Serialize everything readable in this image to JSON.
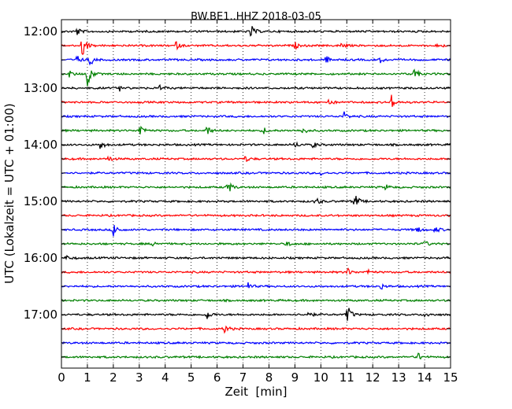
{
  "chart_data": {
    "type": "line",
    "title": "BW.BE1..HHZ 2018-03-05",
    "xlabel": "Zeit  [min]",
    "ylabel": "UTC (Lokalzeit = UTC + 01:00)",
    "xlim": [
      0,
      15
    ],
    "x_ticks": [
      "0",
      "1",
      "2",
      "3",
      "4",
      "5",
      "6",
      "7",
      "8",
      "9",
      "10",
      "11",
      "12",
      "13",
      "14",
      "15"
    ],
    "hour_labels": [
      "12:00",
      "13:00",
      "14:00",
      "15:00",
      "16:00",
      "17:00"
    ],
    "grid": "vertical dotted lines at each minute",
    "trace_colors": [
      "#000000",
      "#ff0000",
      "#0000ff",
      "#008000"
    ],
    "traces": [
      {
        "start": "12:00",
        "color": "#000000",
        "events": [
          {
            "t": 0.6,
            "amp": 0.4
          },
          {
            "t": 7.3,
            "amp": 0.7
          }
        ]
      },
      {
        "start": "12:15",
        "color": "#ff0000",
        "events": [
          {
            "t": 0.8,
            "amp": 1.3
          },
          {
            "t": 4.4,
            "amp": 0.4
          },
          {
            "t": 9.0,
            "amp": 0.3
          },
          {
            "t": 10.8,
            "amp": 0.3
          },
          {
            "t": 14.5,
            "amp": 0.25
          }
        ]
      },
      {
        "start": "12:30",
        "color": "#0000ff",
        "events": [
          {
            "t": 0.6,
            "amp": 0.4
          },
          {
            "t": 1.1,
            "amp": 0.6
          },
          {
            "t": 10.2,
            "amp": 0.35
          },
          {
            "t": 12.3,
            "amp": 0.25
          }
        ]
      },
      {
        "start": "12:45",
        "color": "#008000",
        "events": [
          {
            "t": 0.3,
            "amp": 0.3
          },
          {
            "t": 1.0,
            "amp": 1.3
          },
          {
            "t": 13.6,
            "amp": 0.6
          }
        ]
      },
      {
        "start": "13:00",
        "color": "#000000",
        "events": [
          {
            "t": 2.2,
            "amp": 0.35
          },
          {
            "t": 3.8,
            "amp": 0.25
          }
        ]
      },
      {
        "start": "13:15",
        "color": "#ff0000",
        "events": [
          {
            "t": 10.3,
            "amp": 0.35
          },
          {
            "t": 12.7,
            "amp": 0.8
          }
        ]
      },
      {
        "start": "13:30",
        "color": "#0000ff",
        "events": [
          {
            "t": 10.9,
            "amp": 0.4
          }
        ]
      },
      {
        "start": "13:45",
        "color": "#008000",
        "events": [
          {
            "t": 3.0,
            "amp": 0.8
          },
          {
            "t": 5.6,
            "amp": 0.5
          },
          {
            "t": 7.8,
            "amp": 0.3
          },
          {
            "t": 9.3,
            "amp": 0.35
          }
        ]
      },
      {
        "start": "14:00",
        "color": "#000000",
        "events": [
          {
            "t": 1.5,
            "amp": 0.5
          },
          {
            "t": 9.0,
            "amp": 0.3
          },
          {
            "t": 9.7,
            "amp": 0.3
          }
        ]
      },
      {
        "start": "14:15",
        "color": "#ff0000",
        "events": [
          {
            "t": 1.8,
            "amp": 0.3
          },
          {
            "t": 7.1,
            "amp": 0.3
          }
        ]
      },
      {
        "start": "14:30",
        "color": "#0000ff",
        "events": [
          {
            "t": 10.0,
            "amp": 0.2
          }
        ]
      },
      {
        "start": "14:45",
        "color": "#008000",
        "events": [
          {
            "t": 6.4,
            "amp": 0.8
          },
          {
            "t": 12.5,
            "amp": 0.25
          }
        ]
      },
      {
        "start": "15:00",
        "color": "#000000",
        "events": [
          {
            "t": 9.8,
            "amp": 0.45
          },
          {
            "t": 11.3,
            "amp": 0.8
          }
        ]
      },
      {
        "start": "15:15",
        "color": "#ff0000",
        "events": []
      },
      {
        "start": "15:30",
        "color": "#0000ff",
        "events": [
          {
            "t": 2.0,
            "amp": 0.8
          },
          {
            "t": 13.7,
            "amp": 0.35
          },
          {
            "t": 14.4,
            "amp": 0.35
          }
        ]
      },
      {
        "start": "15:45",
        "color": "#008000",
        "events": [
          {
            "t": 3.5,
            "amp": 0.3
          },
          {
            "t": 8.7,
            "amp": 0.3
          },
          {
            "t": 14.0,
            "amp": 0.3
          }
        ]
      },
      {
        "start": "16:00",
        "color": "#000000",
        "events": [
          {
            "t": 0.2,
            "amp": 0.25
          }
        ]
      },
      {
        "start": "16:15",
        "color": "#ff0000",
        "events": [
          {
            "t": 11.0,
            "amp": 0.45
          },
          {
            "t": 11.8,
            "amp": 0.25
          }
        ]
      },
      {
        "start": "16:30",
        "color": "#0000ff",
        "events": [
          {
            "t": 7.2,
            "amp": 0.35
          },
          {
            "t": 12.3,
            "amp": 0.3
          }
        ]
      },
      {
        "start": "16:45",
        "color": "#008000",
        "events": []
      },
      {
        "start": "17:00",
        "color": "#000000",
        "events": [
          {
            "t": 5.6,
            "amp": 0.5
          },
          {
            "t": 9.5,
            "amp": 0.35
          },
          {
            "t": 11.0,
            "amp": 1.1
          },
          {
            "t": 14.0,
            "amp": 0.3
          }
        ]
      },
      {
        "start": "17:15",
        "color": "#ff0000",
        "events": [
          {
            "t": 6.3,
            "amp": 0.45
          }
        ]
      },
      {
        "start": "17:30",
        "color": "#0000ff",
        "events": []
      },
      {
        "start": "17:45",
        "color": "#008000",
        "events": [
          {
            "t": 13.7,
            "amp": 0.55
          }
        ]
      }
    ]
  }
}
